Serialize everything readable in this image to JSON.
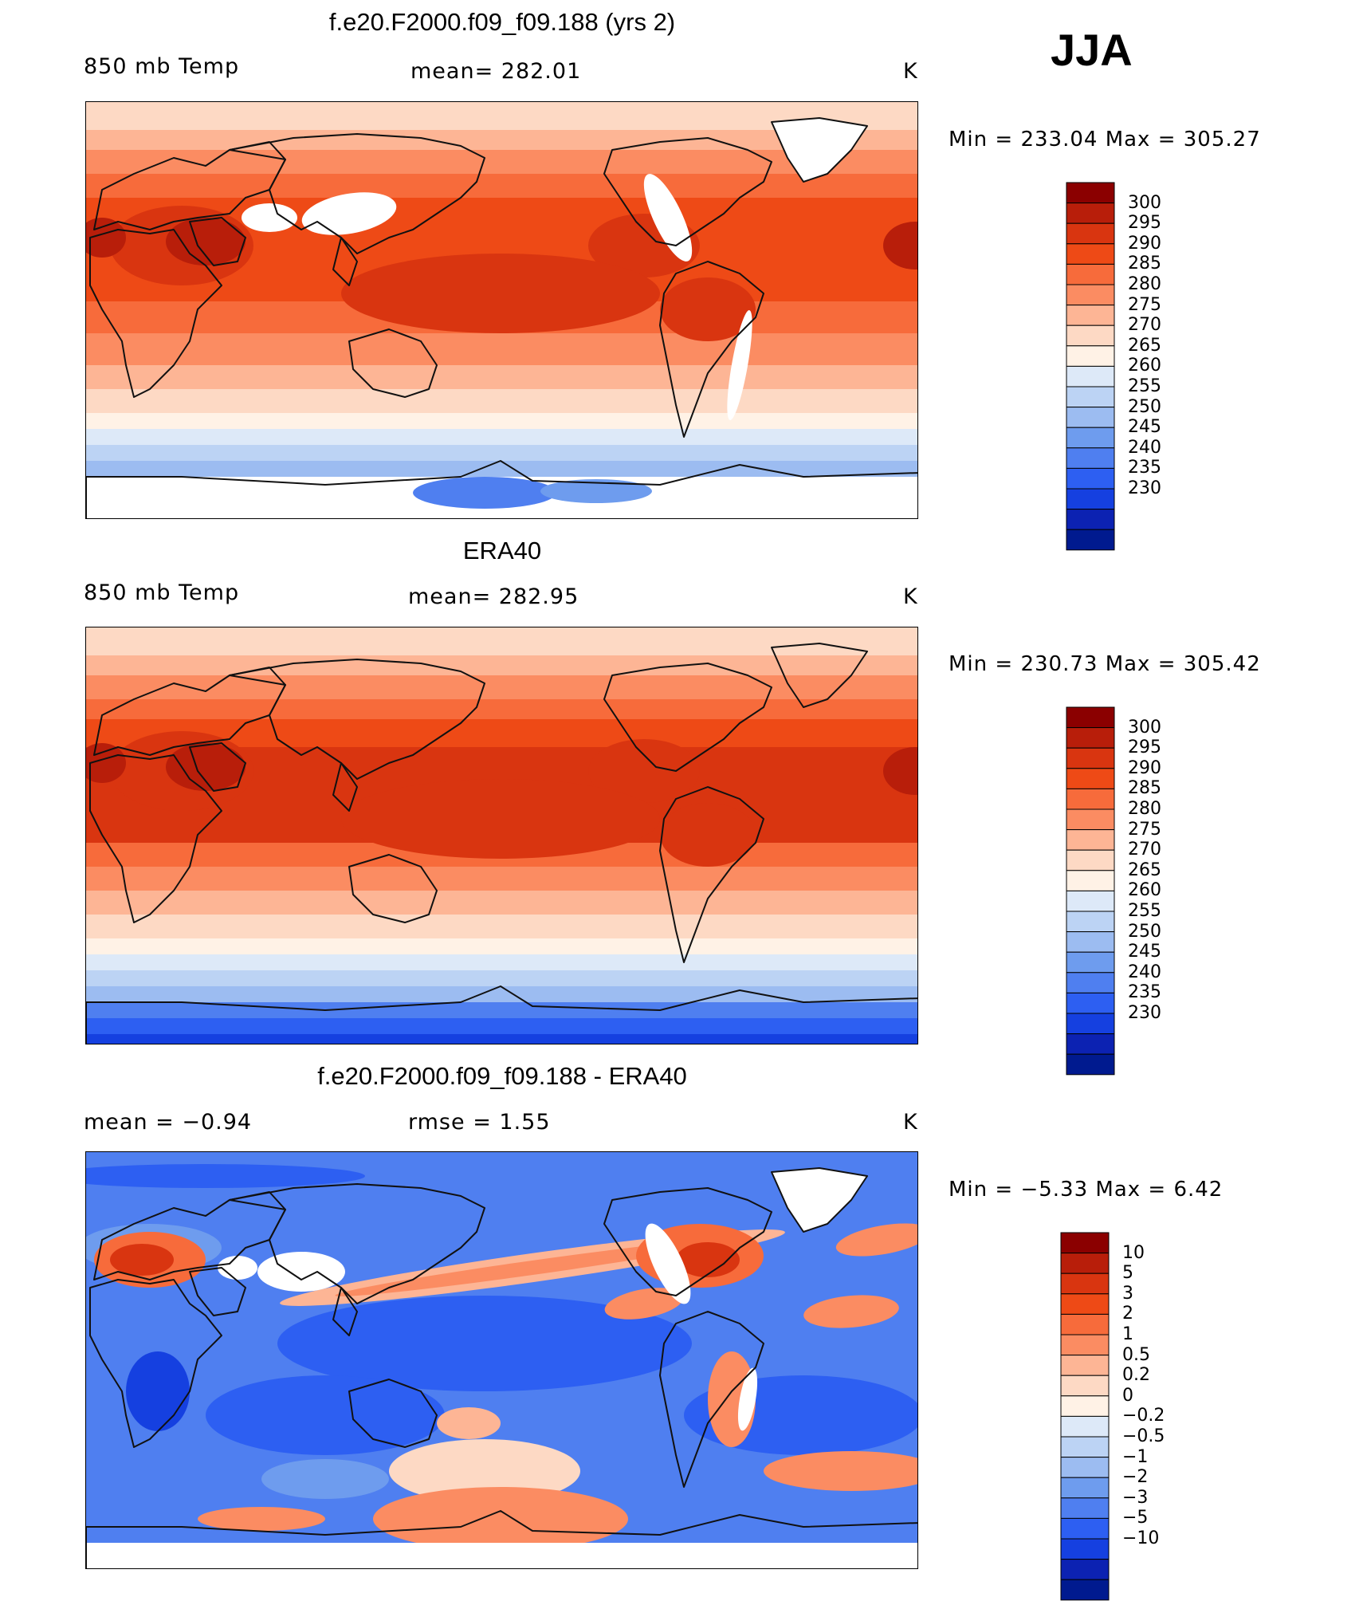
{
  "season": "JJA",
  "panels": [
    {
      "title": "f.e20.F2000.f09_f09.188 (yrs 2)",
      "left_label": "850 mb Temp",
      "center_label": "mean= 282.01",
      "units": "K",
      "minmax": "Min  =  233.04  Max  =  305.27",
      "colorbar": {
        "levels": [
          "300",
          "295",
          "290",
          "285",
          "280",
          "275",
          "270",
          "265",
          "260",
          "255",
          "250",
          "245",
          "240",
          "235",
          "230"
        ],
        "colors": [
          "#8b0000",
          "#b81e0a",
          "#d93510",
          "#ee4a16",
          "#f76b3b",
          "#fb8c62",
          "#fdb595",
          "#fdd9c4",
          "#fff2e6",
          "#dde9f8",
          "#bcd3f4",
          "#9cbcf1",
          "#6e9cee",
          "#4f7ff0",
          "#2d5ff2",
          "#1540e0",
          "#0c22b2",
          "#001a8f"
        ]
      }
    },
    {
      "title": "ERA40",
      "left_label": "850 mb Temp",
      "center_label": "mean= 282.95",
      "units": "K",
      "minmax": "Min  =  230.73  Max  =  305.42",
      "colorbar": {
        "levels": [
          "300",
          "295",
          "290",
          "285",
          "280",
          "275",
          "270",
          "265",
          "260",
          "255",
          "250",
          "245",
          "240",
          "235",
          "230"
        ],
        "colors": [
          "#8b0000",
          "#b81e0a",
          "#d93510",
          "#ee4a16",
          "#f76b3b",
          "#fb8c62",
          "#fdb595",
          "#fdd9c4",
          "#fff2e6",
          "#dde9f8",
          "#bcd3f4",
          "#9cbcf1",
          "#6e9cee",
          "#4f7ff0",
          "#2d5ff2",
          "#1540e0",
          "#0c22b2",
          "#001a8f"
        ]
      }
    },
    {
      "title": "f.e20.F2000.f09_f09.188 - ERA40",
      "left_label": "mean =    −0.94",
      "center_label": "rmse =     1.55",
      "units": "K",
      "minmax": "Min  =    −5.33  Max  =      6.42",
      "colorbar": {
        "levels": [
          "10",
          "5",
          "3",
          "2",
          "1",
          "0.5",
          "0.2",
          "0",
          "−0.2",
          "−0.5",
          "−1",
          "−2",
          "−3",
          "−5",
          "−10"
        ],
        "colors": [
          "#8b0000",
          "#b81e0a",
          "#d93510",
          "#ee4a16",
          "#f76b3b",
          "#fb8c62",
          "#fdb595",
          "#fdd9c4",
          "#fff2e6",
          "#dde9f8",
          "#bcd3f4",
          "#9cbcf1",
          "#6e9cee",
          "#4f7ff0",
          "#2d5ff2",
          "#1540e0",
          "#0c22b2",
          "#001a8f"
        ]
      }
    }
  ]
}
